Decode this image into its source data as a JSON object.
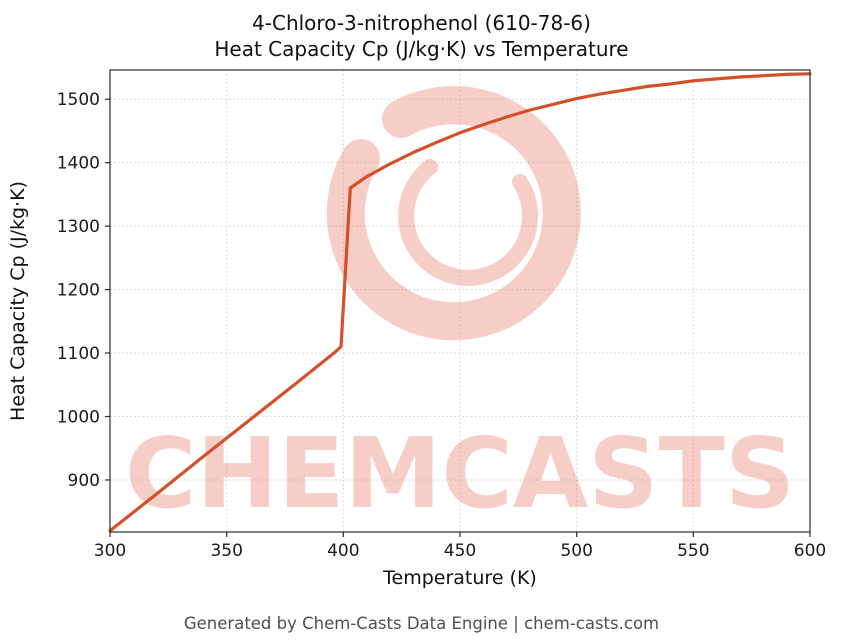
{
  "figure": {
    "title_line1": "4-Chloro-3-nitrophenol (610-78-6)",
    "title_line2": "Heat Capacity Cp (J/kg·K) vs Temperature",
    "footer": "Generated by Chem-Casts Data Engine | chem-casts.com"
  },
  "watermark": {
    "text": "CHEMCASTS",
    "color": "#e8614a",
    "opacity": "0.3"
  },
  "chart_data": {
    "type": "line",
    "title": "4-Chloro-3-nitrophenol (610-78-6)\nHeat Capacity Cp (J/kg·K) vs Temperature",
    "xlabel": "Temperature (K)",
    "ylabel": "Heat Capacity Cp (J/kg·K)",
    "xlim": [
      300,
      600
    ],
    "ylim": [
      818,
      1546
    ],
    "x_ticks": [
      300,
      350,
      400,
      450,
      500,
      550,
      600
    ],
    "y_ticks": [
      900,
      1000,
      1100,
      1200,
      1300,
      1400,
      1500
    ],
    "grid": true,
    "legend_position": "none",
    "line_color": "#d4502a",
    "line_width": 3.2,
    "series": [
      {
        "name": "Heat Capacity Cp",
        "x": [
          300,
          320,
          340,
          360,
          380,
          397,
          399,
          403,
          410,
          420,
          430,
          440,
          450,
          460,
          470,
          480,
          490,
          500,
          510,
          520,
          530,
          540,
          550,
          560,
          570,
          580,
          590,
          600
        ],
        "y": [
          820,
          878,
          937,
          995,
          1053,
          1103,
          1110,
          1360,
          1378,
          1398,
          1416,
          1432,
          1447,
          1460,
          1472,
          1483,
          1492,
          1501,
          1508,
          1514,
          1520,
          1524,
          1529,
          1532,
          1535,
          1537,
          1539,
          1540
        ]
      }
    ]
  }
}
